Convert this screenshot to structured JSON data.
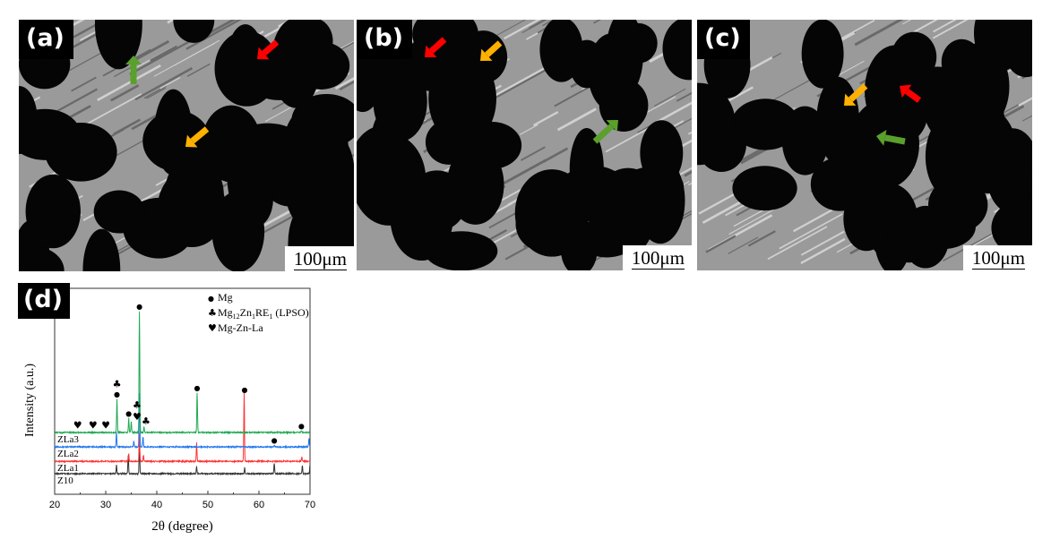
{
  "panels": [
    {
      "label": "(a)",
      "scale_bar": "100μm"
    },
    {
      "label": "(b)",
      "scale_bar": "100μm"
    },
    {
      "label": "(c)",
      "scale_bar": "100μm"
    }
  ],
  "arrow_colors": {
    "red": "#ff0000",
    "orange": "#ffb000",
    "green": "#5aa02c"
  },
  "chart_data": {
    "panel_label": "(d)",
    "type": "line",
    "xlabel": "2θ (degree)",
    "ylabel": "Intensity (a.u.)",
    "xlim": [
      20,
      70
    ],
    "xticks": [
      20,
      30,
      40,
      50,
      60,
      70
    ],
    "ylim": [
      0,
      100
    ],
    "grid": false,
    "legend_position": "top-right",
    "legend": [
      {
        "symbol": "●",
        "text": "Mg"
      },
      {
        "symbol": "♣",
        "text": "Mg12Zn1RE1 (LPSO)",
        "formula": [
          "Mg",
          "12",
          "Zn",
          "1",
          "RE",
          "1",
          " (LPSO)"
        ]
      },
      {
        "symbol": "♥",
        "text": "Mg-Zn-La"
      }
    ],
    "series": [
      {
        "name": "Z10",
        "color": "#333333",
        "baseline": 10,
        "peaks": [
          [
            32.1,
            14
          ],
          [
            34.4,
            19
          ],
          [
            36.6,
            23.5
          ],
          [
            47.8,
            13.5
          ],
          [
            57.2,
            13
          ],
          [
            63.0,
            15
          ],
          [
            68.5,
            14
          ],
          [
            70.0,
            14
          ]
        ]
      },
      {
        "name": "ZLa1",
        "color": "#ff3333",
        "baseline": 16,
        "peaks": [
          [
            34.5,
            20
          ],
          [
            36.6,
            30
          ],
          [
            37.4,
            19
          ],
          [
            47.8,
            25
          ],
          [
            57.1,
            49
          ],
          [
            68.4,
            18
          ]
        ]
      },
      {
        "name": "ZLa2",
        "color": "#2277ee",
        "baseline": 23,
        "peaks": [
          [
            32.1,
            30
          ],
          [
            35.5,
            26
          ],
          [
            36.6,
            49
          ],
          [
            37.3,
            28
          ],
          [
            63.0,
            24
          ],
          [
            69.8,
            27
          ]
        ]
      },
      {
        "name": "ZLa3",
        "color": "#22aa55",
        "baseline": 30,
        "peaks": [
          [
            32.2,
            46.5
          ],
          [
            34.5,
            37
          ],
          [
            35.0,
            35
          ],
          [
            36.6,
            89
          ],
          [
            37.5,
            33
          ],
          [
            47.9,
            49.5
          ],
          [
            68.3,
            31
          ]
        ]
      }
    ],
    "markers": [
      {
        "symbol": "●",
        "x": 32.2,
        "y": 47.5
      },
      {
        "symbol": "♣",
        "x": 32.2,
        "y": 51
      },
      {
        "symbol": "●",
        "x": 36.6,
        "y": 90
      },
      {
        "symbol": "●",
        "x": 34.5,
        "y": 38
      },
      {
        "symbol": "♥",
        "x": 34.9,
        "y": 36
      },
      {
        "symbol": "♣",
        "x": 35.6,
        "y": 34
      },
      {
        "symbol": "♣",
        "x": 37.7,
        "y": 34
      },
      {
        "symbol": "●",
        "x": 47.9,
        "y": 50.5
      },
      {
        "symbol": "●",
        "x": 57.2,
        "y": 49.5
      },
      {
        "symbol": "●",
        "x": 63.0,
        "y": 25
      },
      {
        "symbol": "●",
        "x": 68.3,
        "y": 32
      },
      {
        "symbol": "♥",
        "x": 24.5,
        "y": 32
      },
      {
        "symbol": "♥",
        "x": 27.5,
        "y": 32
      },
      {
        "symbol": "♥",
        "x": 30.0,
        "y": 32
      }
    ]
  }
}
